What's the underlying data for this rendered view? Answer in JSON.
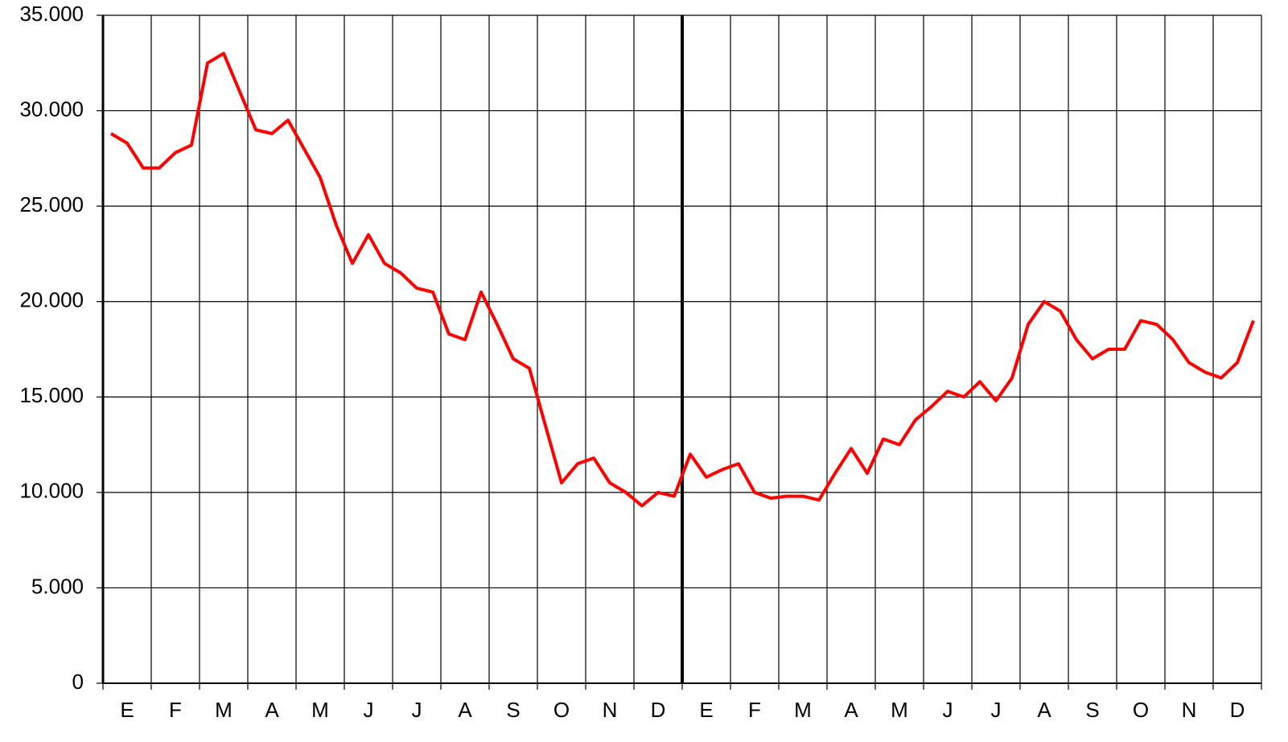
{
  "chart_data": {
    "type": "line",
    "categories": [
      null,
      "E",
      null,
      null,
      "F",
      null,
      null,
      "M",
      null,
      null,
      "A",
      null,
      null,
      "M",
      null,
      null,
      "J",
      null,
      null,
      "J",
      null,
      null,
      "A",
      null,
      null,
      "S",
      null,
      null,
      "O",
      null,
      null,
      "N",
      null,
      null,
      "D",
      null,
      null,
      "E",
      null,
      null,
      "F",
      null,
      null,
      "M",
      null,
      null,
      "A",
      null,
      null,
      "M",
      null,
      null,
      "J",
      null,
      null,
      "J",
      null,
      null,
      "A",
      null,
      null,
      "S",
      null,
      null,
      "O",
      null,
      null,
      "N",
      null,
      null,
      "D",
      null
    ],
    "series": [
      {
        "color": "#ff0000",
        "values": [
          28800,
          28300,
          27000,
          27000,
          27800,
          28200,
          32500,
          33000,
          31000,
          29000,
          28800,
          29500,
          28000,
          26500,
          24000,
          22000,
          23500,
          22000,
          21500,
          20700,
          20500,
          18300,
          18000,
          20500,
          18800,
          17000,
          16500,
          13500,
          10500,
          11500,
          11800,
          10500,
          10000,
          9300,
          10000,
          9800,
          12000,
          10800,
          11200,
          11500,
          10000,
          9700,
          9800,
          9800,
          9600,
          11000,
          12300,
          11000,
          12800,
          12500,
          13800,
          14500,
          15300,
          15000,
          15800,
          14800,
          16000,
          18800,
          20000,
          19500,
          18000,
          17000,
          17500,
          17500,
          19000,
          18800,
          18000,
          16800,
          16300,
          16000,
          16800,
          19000
        ]
      }
    ],
    "ylim": [
      0,
      35000
    ],
    "yticks": [
      0,
      {
        "value": 5000,
        "label": "5.000"
      },
      {
        "value": 10000,
        "label": "10.000"
      },
      {
        "value": 15000,
        "label": "15.000"
      },
      {
        "value": 20000,
        "label": "20.000"
      },
      {
        "value": 25000,
        "label": "25.000"
      },
      {
        "value": 30000,
        "label": "30.000"
      },
      {
        "value": 35000,
        "label": "35.000"
      }
    ],
    "grid": true
  }
}
